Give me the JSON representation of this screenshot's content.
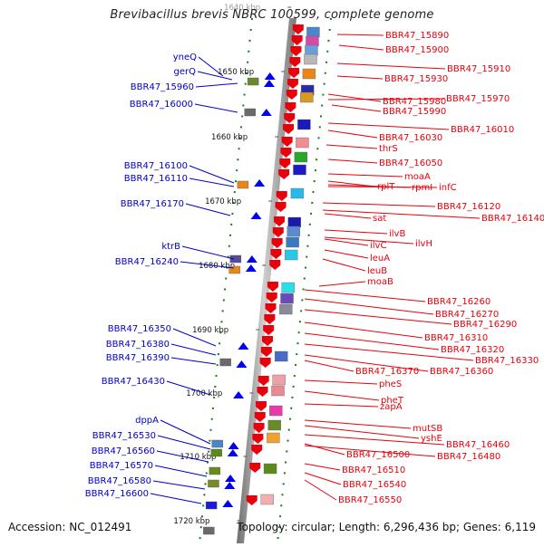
{
  "title": "Brevibacillus brevis NBRC 100599, complete genome",
  "footer": {
    "accession": "Accession: NC_012491",
    "summary": "Topology: circular; Length: 6,296,436 bp; Genes: 6,119"
  },
  "colors": {
    "forward_label": "#e8000b",
    "reverse_label": "#0000c8",
    "forward_gene": "#e8000b",
    "reverse_gene": "#0000ee"
  },
  "ruler": {
    "unit": "kbp",
    "ticks": [
      {
        "label": "1640 kbp"
      },
      {
        "label": "1650 kbp"
      },
      {
        "label": "1660 kbp"
      },
      {
        "label": "1670 kbp"
      },
      {
        "label": "1680 kbp"
      },
      {
        "label": "1690 kbp"
      },
      {
        "label": "1700 kbp"
      },
      {
        "label": "1710 kbp"
      },
      {
        "label": "1720 kbp"
      }
    ]
  },
  "reverse_labels": [
    "yneQ",
    "gerQ",
    "BBR47_15960",
    "BBR47_16000",
    "BBR47_16100",
    "BBR47_16110",
    "BBR47_16170",
    "ktrB",
    "BBR47_16240",
    "BBR47_16350",
    "BBR47_16380",
    "BBR47_16390",
    "BBR47_16430",
    "dppA",
    "BBR47_16530",
    "BBR47_16560",
    "BBR47_16570",
    "BBR47_16580",
    "BBR47_16600"
  ],
  "forward_labels": [
    "BBR47_15890",
    "BBR47_15900",
    "BBR47_15910",
    "BBR47_15930",
    "BBR47_15980",
    "BBR47_15970",
    "BBR47_15990",
    "BBR47_16010",
    "BBR47_16030",
    "thrS",
    "BBR47_16050",
    "moaA",
    "rplT",
    "rpmI",
    "infC",
    "BBR47_16120",
    "sat",
    "BBR47_16140",
    "ilvB",
    "ilvC",
    "ilvH",
    "leuA",
    "leuB",
    "moaB",
    "BBR47_16260",
    "BBR47_16270",
    "BBR47_16290",
    "BBR47_16310",
    "BBR47_16320",
    "BBR47_16330",
    "BBR47_16370",
    "BBR47_16360",
    "pheS",
    "pheT",
    "zapA",
    "mutSB",
    "yshE",
    "BBR47_16460",
    "BBR47_16500",
    "BBR47_16480",
    "BBR47_16510",
    "BBR47_16540",
    "BBR47_16550"
  ]
}
